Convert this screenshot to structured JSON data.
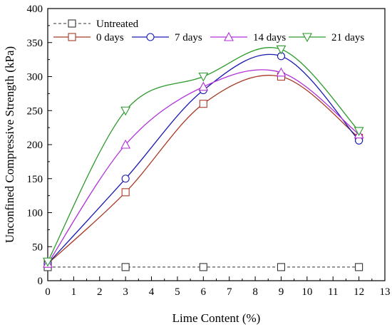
{
  "chart_data": {
    "type": "line",
    "xlabel": "Lime Content (%)",
    "ylabel": "Unconfined Compressive Strength (kPa)",
    "xlim": [
      0,
      13
    ],
    "ylim": [
      0,
      400
    ],
    "x_ticks": [
      0,
      1,
      2,
      3,
      4,
      5,
      6,
      7,
      8,
      9,
      10,
      11,
      12,
      13
    ],
    "y_ticks": [
      0,
      50,
      100,
      150,
      200,
      250,
      300,
      350,
      400
    ],
    "grid": false,
    "legend_position": "top-left",
    "series": [
      {
        "name": "Untreated",
        "color": "#333333",
        "marker": "square",
        "line_style": "dashed",
        "x": [
          0,
          3,
          6,
          9,
          12
        ],
        "y": [
          20,
          20,
          20,
          20,
          20
        ]
      },
      {
        "name": "0 days",
        "color": "#a83a26",
        "marker": "square",
        "line_style": "solid",
        "x": [
          0,
          3,
          6,
          9,
          12
        ],
        "y": [
          25,
          130,
          260,
          300,
          210
        ]
      },
      {
        "name": "7 days",
        "color": "#1a1ab0",
        "marker": "circle",
        "line_style": "solid",
        "x": [
          0,
          3,
          6,
          9,
          12
        ],
        "y": [
          25,
          150,
          280,
          330,
          206
        ]
      },
      {
        "name": "14 days",
        "color": "#b030d8",
        "marker": "triangle-up",
        "line_style": "solid",
        "x": [
          0,
          3,
          6,
          9,
          12
        ],
        "y": [
          25,
          200,
          285,
          306,
          215
        ]
      },
      {
        "name": "21 days",
        "color": "#2a9a2a",
        "marker": "triangle-down",
        "line_style": "solid",
        "x": [
          0,
          3,
          6,
          9,
          12
        ],
        "y": [
          28,
          250,
          300,
          340,
          220
        ]
      }
    ]
  }
}
